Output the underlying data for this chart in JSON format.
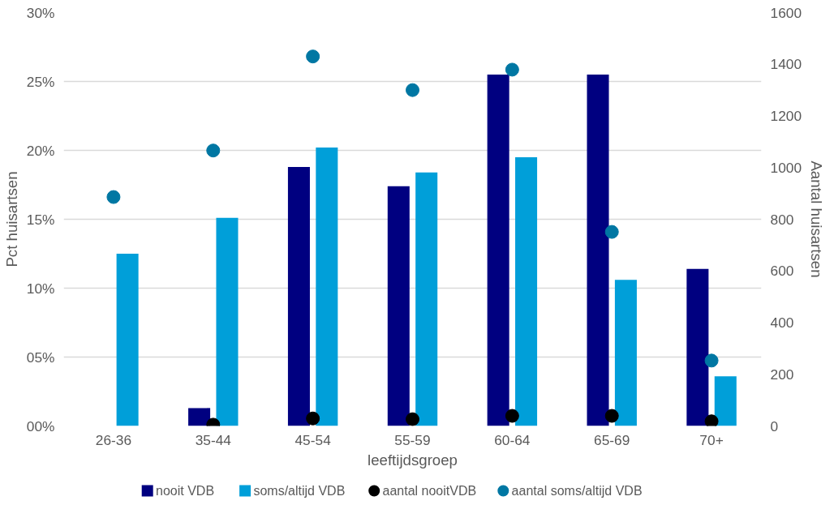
{
  "chart_data": {
    "type": "bar",
    "xlabel": "leeftijdsgroep",
    "ylabel": "Pct huisartsen",
    "y2label": "Aantal huisartsen",
    "categories": [
      "26-36",
      "35-44",
      "45-54",
      "55-59",
      "60-64",
      "65-69",
      "70+"
    ],
    "series": [
      {
        "name": "nooit VDB",
        "color": "#000080",
        "values": [
          null,
          1.3,
          18.8,
          17.4,
          25.5,
          25.5,
          11.4
        ]
      },
      {
        "name": "soms/altijd VDB",
        "color": "#009fd9",
        "values": [
          12.5,
          15.1,
          20.2,
          18.4,
          19.5,
          10.6,
          3.6
        ]
      },
      {
        "name": "aantal nooitVDB",
        "type": "scatter",
        "axis": "y2",
        "color": "#000000",
        "marker": "circle",
        "values": [
          null,
          5,
          29,
          26,
          39,
          39,
          18
        ]
      },
      {
        "name": "aantal soms/altijd VDB",
        "type": "scatter",
        "axis": "y2",
        "color": "#0077a3",
        "marker": "circle",
        "values": [
          886,
          1066,
          1430,
          1300,
          1379,
          751,
          253
        ]
      }
    ],
    "ylim": [
      0,
      30
    ],
    "yticks": [
      {
        "value": 0,
        "label": "00%"
      },
      {
        "value": 5,
        "label": "05%"
      },
      {
        "value": 10,
        "label": "10%"
      },
      {
        "value": 15,
        "label": "15%"
      },
      {
        "value": 20,
        "label": "20%"
      },
      {
        "value": 25,
        "label": "25%"
      },
      {
        "value": 30,
        "label": "30%"
      }
    ],
    "y2lim": [
      0,
      1600
    ],
    "y2ticks": [
      0,
      200,
      400,
      600,
      800,
      1000,
      1200,
      1400,
      1600
    ],
    "grid": "y",
    "legend": "bottom"
  }
}
